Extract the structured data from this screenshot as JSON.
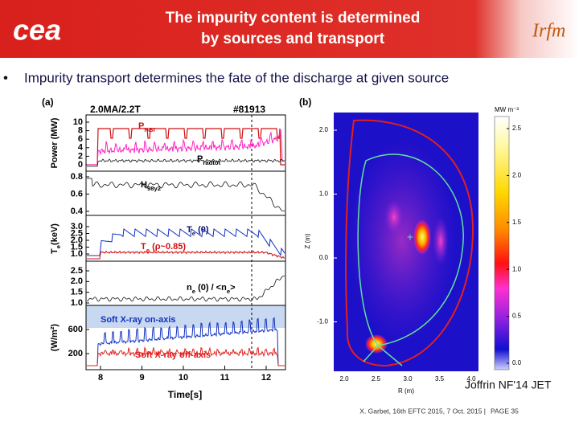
{
  "header": {
    "logo_left": "cea",
    "title": [
      "The impurity content is determined",
      "by sources and transport"
    ],
    "logo_right": "Irfm"
  },
  "bullet": "Impurity transport determines the fate of the discharge at given source",
  "figure_a": {
    "label": "(a)",
    "info_left": "2.0MA/2.2T",
    "info_right": "#81913",
    "panels": [
      {
        "ylabel": [
          "Power (MW)"
        ],
        "yticks": [
          "10",
          "8",
          "6",
          "4",
          "2",
          "0"
        ],
        "annotations": [
          {
            "parts": [
              "P",
              "NBI"
            ],
            "color": "#d01010"
          },
          {
            "parts": [
              "P",
              "radtot"
            ],
            "color": "#000000"
          }
        ]
      },
      {
        "ylabel": [],
        "yticks": [
          "0.8",
          "0.6",
          "0.4"
        ],
        "annotations": [
          {
            "parts": [
              "H",
              "98y2"
            ],
            "color": "#000000"
          }
        ]
      },
      {
        "ylabel": [
          "T",
          "e",
          "(keV)"
        ],
        "yticks": [
          "3.0",
          "2.5",
          "2.0",
          "1.5",
          "1.0"
        ],
        "annotations": [
          {
            "parts": [
              "T",
              "e",
              " (0)"
            ],
            "color": "#10106a"
          },
          {
            "parts": [
              "T",
              "e",
              " (ρ~0.85)"
            ],
            "color": "#d01010"
          }
        ]
      },
      {
        "ylabel": [],
        "yticks": [
          "2.5",
          "2.0",
          "1.5",
          "1.0"
        ],
        "annotations": [
          {
            "parts": [
              "n",
              "e",
              " (0) / <n",
              "e",
              ">"
            ],
            "color": "#000000"
          }
        ]
      },
      {
        "ylabel": [
          "(W/m²)"
        ],
        "yticks": [
          "600",
          "200"
        ],
        "annotations": [
          {
            "parts": [
              "Soft X-ray on-axis"
            ],
            "color": "#1030c0"
          },
          {
            "parts": [
              "Soft X-ray off-axis"
            ],
            "color": "#e02020"
          }
        ]
      }
    ],
    "xticks": [
      "8",
      "9",
      "10",
      "11",
      "12"
    ],
    "xlabel": "Time[s]"
  },
  "figure_b": {
    "label": "(b)",
    "ylabel": "Z (m)",
    "yticks": [
      "2.0",
      "1.0",
      "0.0",
      "-1.0"
    ],
    "xlabel": "R (m)",
    "xticks": [
      "2.0",
      "2.5",
      "3.0",
      "3.5",
      "4.0"
    ],
    "colorbar_unit": "MW m⁻³",
    "colorbar_ticks": [
      "2.5",
      "2.0",
      "1.5",
      "1.0",
      "0.5",
      "0.0"
    ]
  },
  "caption": "Joffrin NF'14 JET",
  "footer": {
    "text": "X. Garbet, 16th EFTC 2015, 7 Oct. 2015 |",
    "page": "PAGE 35"
  }
}
